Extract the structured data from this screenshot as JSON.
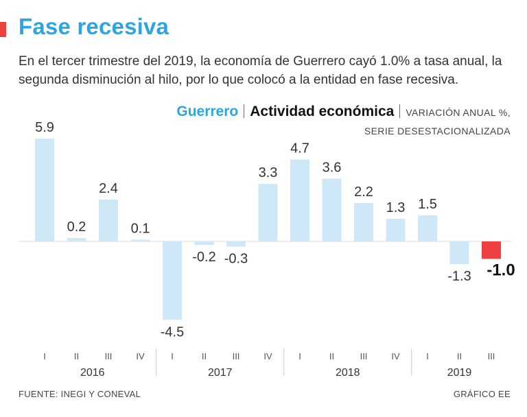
{
  "header": {
    "title": "Fase recesiva",
    "subtitle": "En el tercer trimestre del 2019, la economía de Guerrero cayó 1.0% a tasa anual, la segunda disminución al hilo, por lo que colocó a la entidad en fase recesiva."
  },
  "legend": {
    "region": "Guerrero",
    "metric": "Actividad económica",
    "note_line1": "VARIACIÓN ANUAL %,",
    "note_line2": "SERIE DESESTACIONALIZADA"
  },
  "footer": {
    "source": "FUENTE: INEGI Y CONEVAL",
    "credit": "GRÁFICO EE"
  },
  "colors": {
    "accent_red": "#ee4040",
    "title_blue": "#2aa6e0",
    "bar_blue": "#cfe8f8",
    "highlight_bar": "#ee4040",
    "text": "#222222",
    "axis": "#dddddd"
  },
  "chart_data": {
    "type": "bar",
    "title": "Guerrero | Actividad económica | Variación anual %, serie desestacionalizada",
    "xlabel": "",
    "ylabel": "",
    "ylim": [
      -6,
      7
    ],
    "categories": [
      "I",
      "II",
      "III",
      "IV",
      "I",
      "II",
      "III",
      "IV",
      "I",
      "II",
      "III",
      "IV",
      "I",
      "II",
      "III"
    ],
    "years": [
      {
        "label": "2016",
        "quarters": 4
      },
      {
        "label": "2017",
        "quarters": 4
      },
      {
        "label": "2018",
        "quarters": 4
      },
      {
        "label": "2019",
        "quarters": 3
      }
    ],
    "values": [
      5.9,
      0.2,
      2.4,
      0.1,
      -4.5,
      -0.2,
      -0.3,
      3.3,
      4.7,
      3.6,
      2.2,
      1.3,
      1.5,
      -1.3,
      -1.0
    ],
    "labels": [
      "5.9",
      "0.2",
      "2.4",
      "0.1",
      "-4.5",
      "-0.2",
      "-0.3",
      "3.3",
      "4.7",
      "3.6",
      "2.2",
      "1.3",
      "1.5",
      "-1.3",
      "-1.0"
    ],
    "highlight_index": 14,
    "grid": false
  }
}
